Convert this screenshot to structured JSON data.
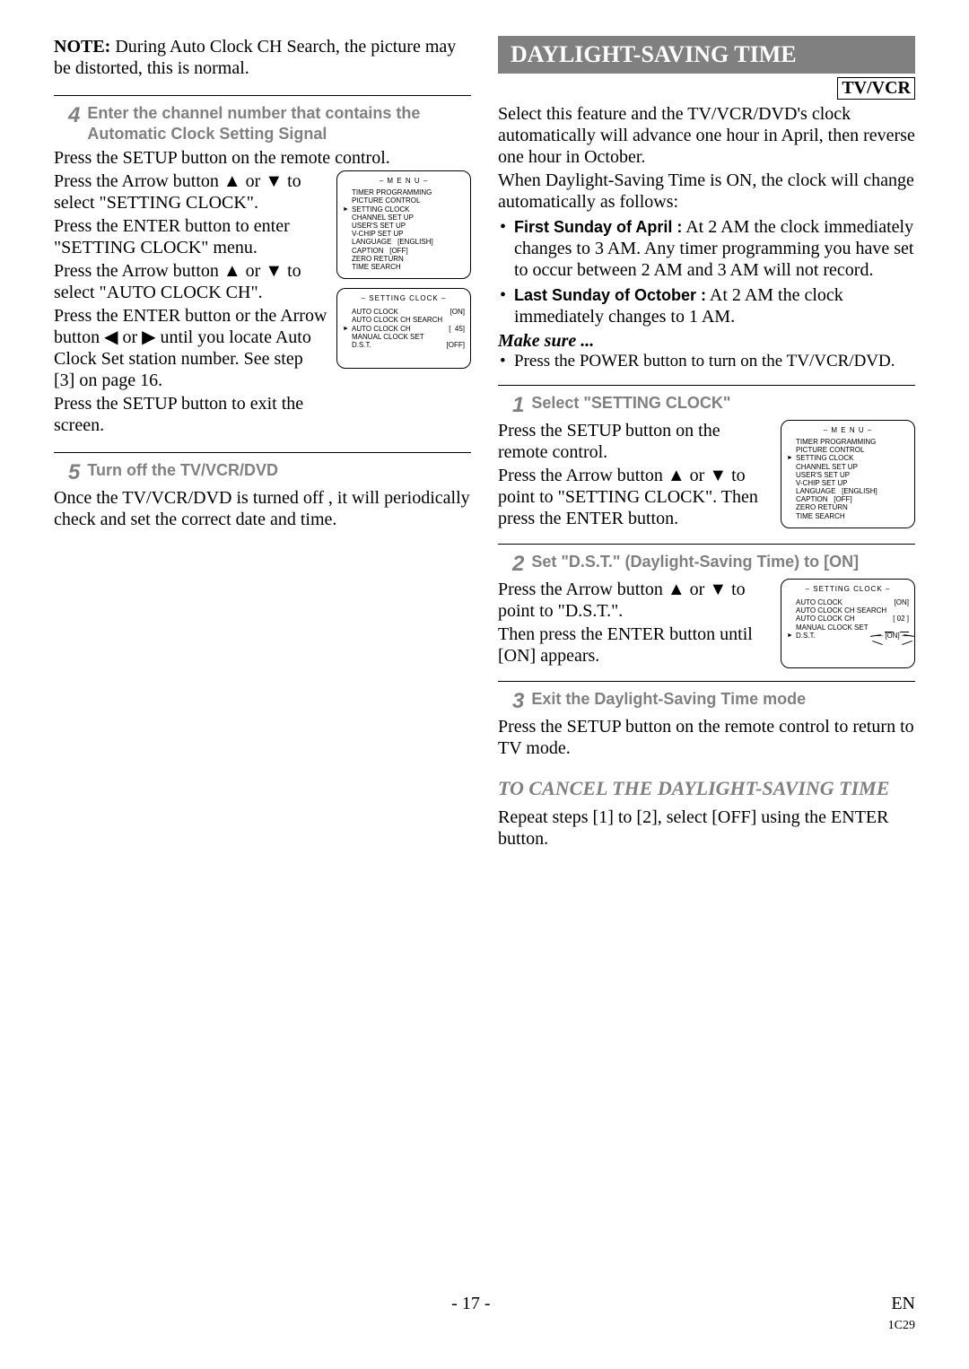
{
  "left": {
    "note_prefix": "NOTE:",
    "note_text": " During Auto Clock CH Search, the picture may be distorted, this is normal.",
    "step4": {
      "num": "4",
      "title": "Enter the channel number that contains the Automatic Clock Setting Signal",
      "para1": "Press the SETUP button on the remote control.",
      "text_col": {
        "l1": "Press the Arrow button ▲ or ▼ to select \"SETTING CLOCK\".",
        "l2": "Press the ENTER button to enter \"SETTING CLOCK\" menu.",
        "l3": "Press the Arrow button ▲ or ▼ to select \"AUTO CLOCK CH\".",
        "l4": "Press the ENTER button or the Arrow button ◀ or ▶ until you locate Auto Clock Set station number. See step [3] on page 16.",
        "l5": "Press the SETUP button to exit the screen."
      }
    },
    "osd_menu": {
      "title": "– M E N U –",
      "lines": [
        "TIMER PROGRAMMING",
        "PICTURE CONTROL",
        "SETTING CLOCK",
        "CHANNEL SET UP",
        "USER'S SET UP",
        "V-CHIP SET UP",
        "LANGUAGE   [ENGLISH]",
        "CAPTION   [OFF]",
        "ZERO RETURN",
        "TIME SEARCH"
      ],
      "arrow_index": 2
    },
    "osd_clock": {
      "title": "– SETTING CLOCK –",
      "rows": [
        {
          "l": "AUTO CLOCK",
          "r": "[ON]"
        },
        {
          "l": "AUTO CLOCK CH SEARCH",
          "r": ""
        },
        {
          "l": "AUTO CLOCK CH",
          "r": "[  45]"
        },
        {
          "l": "MANUAL CLOCK SET",
          "r": ""
        },
        {
          "l": "D.S.T.",
          "r": "[OFF]"
        }
      ],
      "arrow_index": 2
    },
    "step5": {
      "num": "5",
      "title": "Turn off the TV/VCR/DVD",
      "body": "Once the TV/VCR/DVD is turned off , it will periodically check and set the correct date and time."
    }
  },
  "right": {
    "banner": "DAYLIGHT-SAVING TIME",
    "tvvcr": "TV/VCR",
    "intro1": "Select this feature and the TV/VCR/DVD's clock automatically will advance one hour in April, then reverse one hour in October.",
    "intro2": "When Daylight-Saving Time is ON, the clock will change automatically as follows:",
    "bullets": [
      {
        "bold": "First Sunday of April :",
        "rest": " At 2 AM the clock immediately changes to 3 AM. Any timer programming you have set to occur between 2 AM and 3 AM will not record."
      },
      {
        "bold": "Last Sunday of October :",
        "rest": " At 2 AM the clock immediately changes to 1 AM."
      }
    ],
    "makesure": "Make sure ...",
    "makesure_item": "Press the POWER button to turn on the TV/VCR/DVD.",
    "step1": {
      "num": "1",
      "title": "Select \"SETTING CLOCK\"",
      "l1": "Press the SETUP button on the remote control.",
      "l2": "Press the Arrow button ▲ or ▼ to point to \"SETTING CLOCK\". Then press the ENTER button."
    },
    "osd_menu2": {
      "title": "– M E N U –",
      "lines": [
        "TIMER PROGRAMMING",
        "PICTURE CONTROL",
        "SETTING CLOCK",
        "CHANNEL SET UP",
        "USER'S SET UP",
        "V-CHIP SET UP",
        "LANGUAGE   [ENGLISH]",
        "CAPTION   [OFF]",
        "ZERO RETURN",
        "TIME SEARCH"
      ],
      "arrow_index": 2
    },
    "step2": {
      "num": "2",
      "title": "Set \"D.S.T.\" (Daylight-Saving Time) to [ON]",
      "l1": "Press the Arrow button ▲ or ▼ to point to \"D.S.T.\".",
      "l2": "Then press the ENTER button until [ON] appears."
    },
    "osd_clock2": {
      "title": "– SETTING CLOCK –",
      "rows": [
        {
          "l": "AUTO CLOCK",
          "r": "[ON]"
        },
        {
          "l": "AUTO CLOCK CH SEARCH",
          "r": ""
        },
        {
          "l": "AUTO CLOCK CH",
          "r": "[ 02 ]"
        },
        {
          "l": "MANUAL CLOCK SET",
          "r": ""
        },
        {
          "l": "D.S.T.",
          "r": "[ON]"
        }
      ],
      "arrow_index": 4
    },
    "step3": {
      "num": "3",
      "title": "Exit the Daylight-Saving Time mode",
      "body": "Press the SETUP button on the remote control to return to TV mode."
    },
    "cancel_head": "TO CANCEL THE DAYLIGHT-SAVING TIME",
    "cancel_body": "Repeat steps [1] to [2], select [OFF] using the ENTER button."
  },
  "footer": {
    "page": "- 17 -",
    "en": "EN",
    "code": "1C29"
  }
}
